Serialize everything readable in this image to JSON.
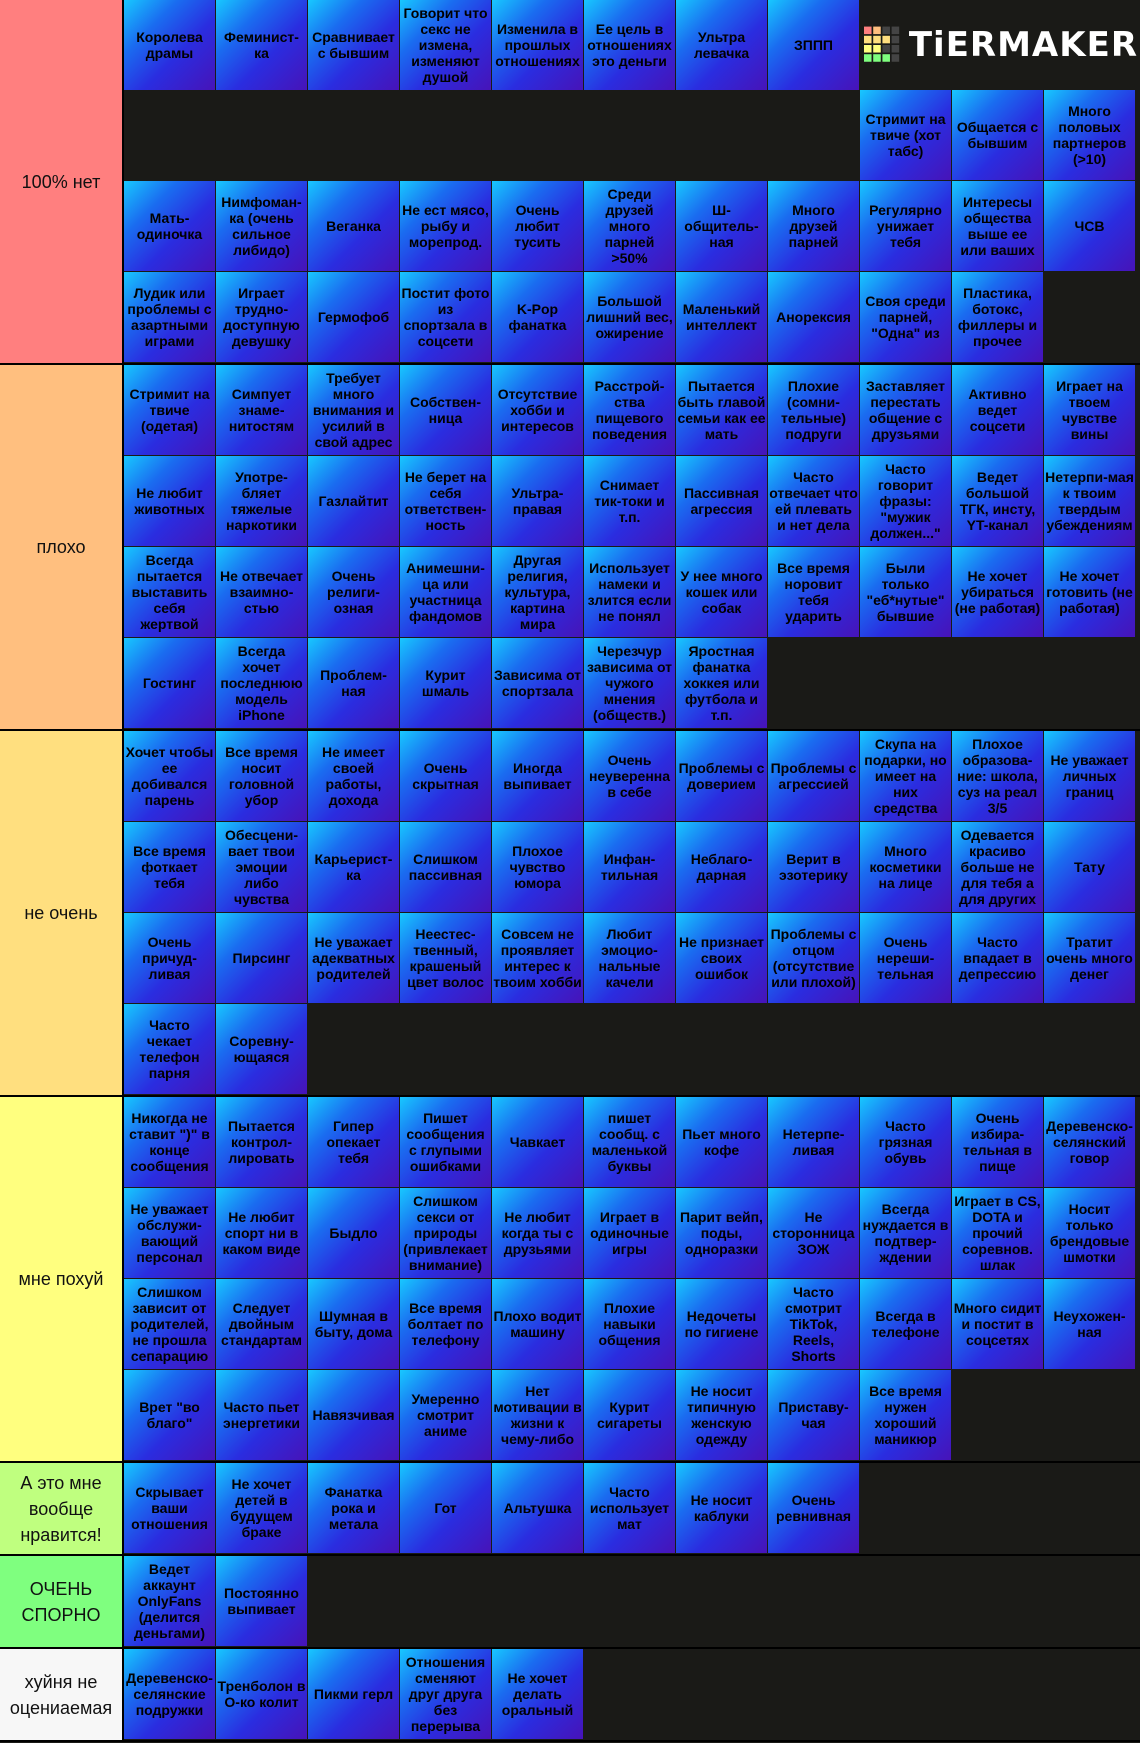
{
  "logo": "TiERMAKER",
  "tiers": [
    {
      "label": "100% нет",
      "color": "#ff7f7f",
      "items": [
        "Королева драмы",
        "Феминист-ка",
        "Сравнивает с бывшим",
        "Говорит что секс не измена, изменяют душой",
        "Изменила в прошлых отношениях",
        "Ее цель в отношениях это деньги",
        "Ультра левачка",
        "ЗППП",
        "Стримит на твиче (хот табс)",
        "Общается с бывшим",
        "Много половых партнеров (>10)",
        "Мать-одиночка",
        "Нимфоман-ка (очень сильное либидо)",
        "Веганка",
        "Не ест мясо, рыбу и морепрод.",
        "Очень любит тусить",
        "Среди друзей много парней >50%",
        "Ш-общитель-ная",
        "Много друзей парней",
        "Регулярно унижает тебя",
        "Интересы общества выше ее или ваших",
        "ЧСВ",
        "Лудик или проблемы с азартными играми",
        "Играет трудно-доступную девушку",
        "Гермофоб",
        "Постит фото из спортзала в соцсети",
        "K-Pop фанатка",
        "Большой лишний вес, ожирение",
        "Маленький интеллект",
        "Анорексия",
        "Своя среди парней, \"Одна\" из",
        "Пластика, ботокс, филлеры и прочее"
      ]
    },
    {
      "label": "плохо",
      "color": "#ffbf7f",
      "items": [
        "Стримит на твиче (одетая)",
        "Симпует знаме-нитостям",
        "Требует много внимания и усилий в свой адрес",
        "Собствен-ница",
        "Отсутствие хобби и интересов",
        "Расстрой-ства пищевого поведения",
        "Пытается быть главой семьи как ее мать",
        "Плохие (сомни-тельные) подруги",
        "Заставляет перестать общение с друзьями",
        "Активно ведет соцсети",
        "Играет на твоем чувстве вины",
        "Не любит животных",
        "Употре-бляет тяжелые наркотики",
        "Газлайтит",
        "Не берет на себя ответствен-ность",
        "Ультра-правая",
        "Снимает тик-токи и т.п.",
        "Пассивная агрессия",
        "Часто отвечает что ей плевать и нет дела",
        "Часто говорит фразы: \"мужик должен...\"",
        "Ведет большой ТГК, инсту, YT-канал",
        "Нетерпи-мая к твоим твердым убеждениям",
        "Всегда пытается выставить себя жертвой",
        "Не отвечает взаимно-стью",
        "Очень религи-озная",
        "Анимешни-ца или участница фандомов",
        "Другая религия, культура, картина мира",
        "Использует намеки и злится если не понял",
        "У нее много кошек или собак",
        "Все время норовит тебя ударить",
        "Были только \"еб*нутые\" бывшие",
        "Не хочет убираться (не работая)",
        "Не хочет готовить (не работая)",
        "Гостинг",
        "Всегда хочет последнюю модель iPhone",
        "Проблем-ная",
        "Курит шмаль",
        "Зависима от спортзала",
        "Черезчур зависима от чужого мнения (обществ.)",
        "Яростная фанатка хоккея или футбола и т.п."
      ]
    },
    {
      "label": "не очень",
      "color": "#ffdf7f",
      "items": [
        "Хочет чтобы ее добивался парень",
        "Все время носит головной убор",
        "Не имеет своей работы, дохода",
        "Очень скрытная",
        "Иногда выпивает",
        "Очень неуверенна в себе",
        "Проблемы с доверием",
        "Проблемы с агрессией",
        "Скупа на подарки, но имеет на них средства",
        "Плохое образова-ние: школа, суз на реал 3/5",
        "Не уважает личных границ",
        "Все время фоткает тебя",
        "Обесцени-вает твои эмоции либо чувства",
        "Карьерист-ка",
        "Слишком пассивная",
        "Плохое чувство юмора",
        "Инфан-тильная",
        "Неблаго-дарная",
        "Верит в эзотерику",
        "Много косметики на лице",
        "Одевается красиво больше не для тебя а для других",
        "Тату",
        "Очень причуд-ливая",
        "Пирсинг",
        "Не уважает адекватных родителей",
        "Неестес-твенный, крашеный цвет волос",
        "Совсем не проявляет интерес к твоим хобби",
        "Любит эмоцио-нальные качели",
        "Не признает своих ошибок",
        "Проблемы с отцом (отсутствие или плохой)",
        "Очень нереши-тельная",
        "Часто впадает в депрессию",
        "Тратит очень много денег",
        "Часто чекает телефон парня",
        "Соревну-ющаяся"
      ]
    },
    {
      "label": "мне похуй",
      "color": "#ffff7f",
      "items": [
        "Никогда не ставит \")\" в конце сообщения",
        "Пытается контрол-лировать",
        "Гипер опекает тебя",
        "Пишет сообщения с глупыми ошибками",
        "Чавкает",
        "пишет сообщ. с маленькой буквы",
        "Пьет много кофе",
        "Нетерпе-ливая",
        "Часто грязная обувь",
        "Очень избира-тельная в пище",
        "Деревенско-селянский говор",
        "Не уважает обслужи-вающий персонал",
        "Не любит спорт ни в каком виде",
        "Быдло",
        "Слишком секси от природы (привлекает внимание)",
        "Не любит когда ты с друзьями",
        "Играет в одиночные игры",
        "Парит вейп, поды, одноразки",
        "Не сторонница ЗОЖ",
        "Всегда нуждается в подтвер-ждении",
        "Играет в CS, DOTA и прочий соревнов. шлак",
        "Носит только брендовые шмотки",
        "Слишком зависит от родителей, не прошла сепарацию",
        "Следует двойным стандартам",
        "Шумная в быту, дома",
        "Все время болтает по телефону",
        "Плохо водит машину",
        "Плохие навыки общения",
        "Недочеты по гигиене",
        "Часто смотрит TikTok, Reels, Shorts",
        "Всегда в телефоне",
        "Много сидит и постит в соцсетях",
        "Неухожен-ная",
        "Врет \"во благо\"",
        "Часто пьет энергетики",
        "Навязчивая",
        "Умеренно смотрит аниме",
        "Нет мотивации в жизни к чему-либо",
        "Курит сигареты",
        "Не носит типичную женскую одежду",
        "Приставу-чая",
        "Все время нужен хороший маникюр"
      ]
    },
    {
      "label": "А это мне вообще нравится!",
      "color": "#bfff7f",
      "items": [
        "Скрывает ваши отношения",
        "Не хочет детей в будущем браке",
        "Фанатка рока и метала",
        "Гот",
        "Альтушка",
        "Часто использует мат",
        "Не носит каблуки",
        "Очень ревнивная"
      ]
    },
    {
      "label": "ОЧЕНЬ СПОРНО",
      "color": "#7fff7f",
      "items": [
        "Ведет аккаунт OnlyFans (делится деньгами)",
        "Постоянно выпивает"
      ]
    },
    {
      "label": "хуйня не оцениаемая",
      "color": "#f7f7f7",
      "items": [
        "Деревенско-селянские подружки",
        "Тренболон в О-ко колит",
        "Пикми герл",
        "Отношения сменяют друг друга без перерыва",
        "Не хочет делать оральный"
      ]
    }
  ]
}
